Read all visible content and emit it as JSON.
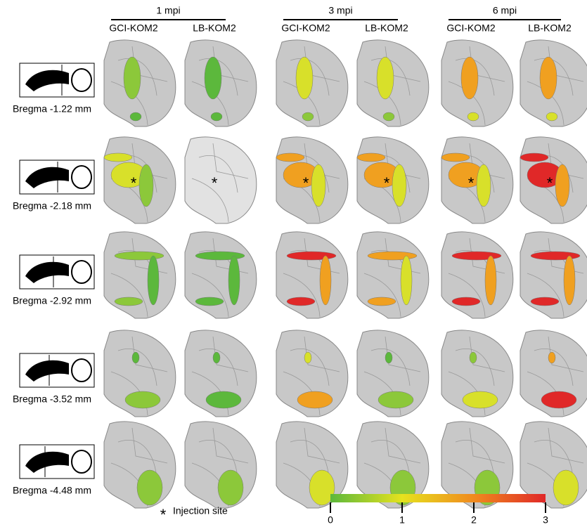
{
  "header": {
    "columns": [
      {
        "time": "1 mpi",
        "groups": [
          "GCI-KOM2",
          "LB-KOM2"
        ]
      },
      {
        "time": "3 mpi",
        "groups": [
          "GCI-KOM2",
          "LB-KOM2"
        ]
      },
      {
        "time": "6 mpi",
        "groups": [
          "GCI-KOM2",
          "LB-KOM2"
        ]
      }
    ]
  },
  "rows": [
    "Bregma -1.22 mm",
    "Bregma -2.18 mm",
    "Bregma -2.92 mm",
    "Bregma -3.52 mm",
    "Bregma -4.48 mm"
  ],
  "injection_marker": "*",
  "legend": {
    "marker": "*",
    "label": "Injection site"
  },
  "colorbar": {
    "range": [
      0,
      3
    ],
    "ticks": [
      0,
      1,
      2,
      3
    ],
    "colors": [
      "#5cb83c",
      "#e6e21e",
      "#f08a1e",
      "#e02828"
    ]
  }
}
